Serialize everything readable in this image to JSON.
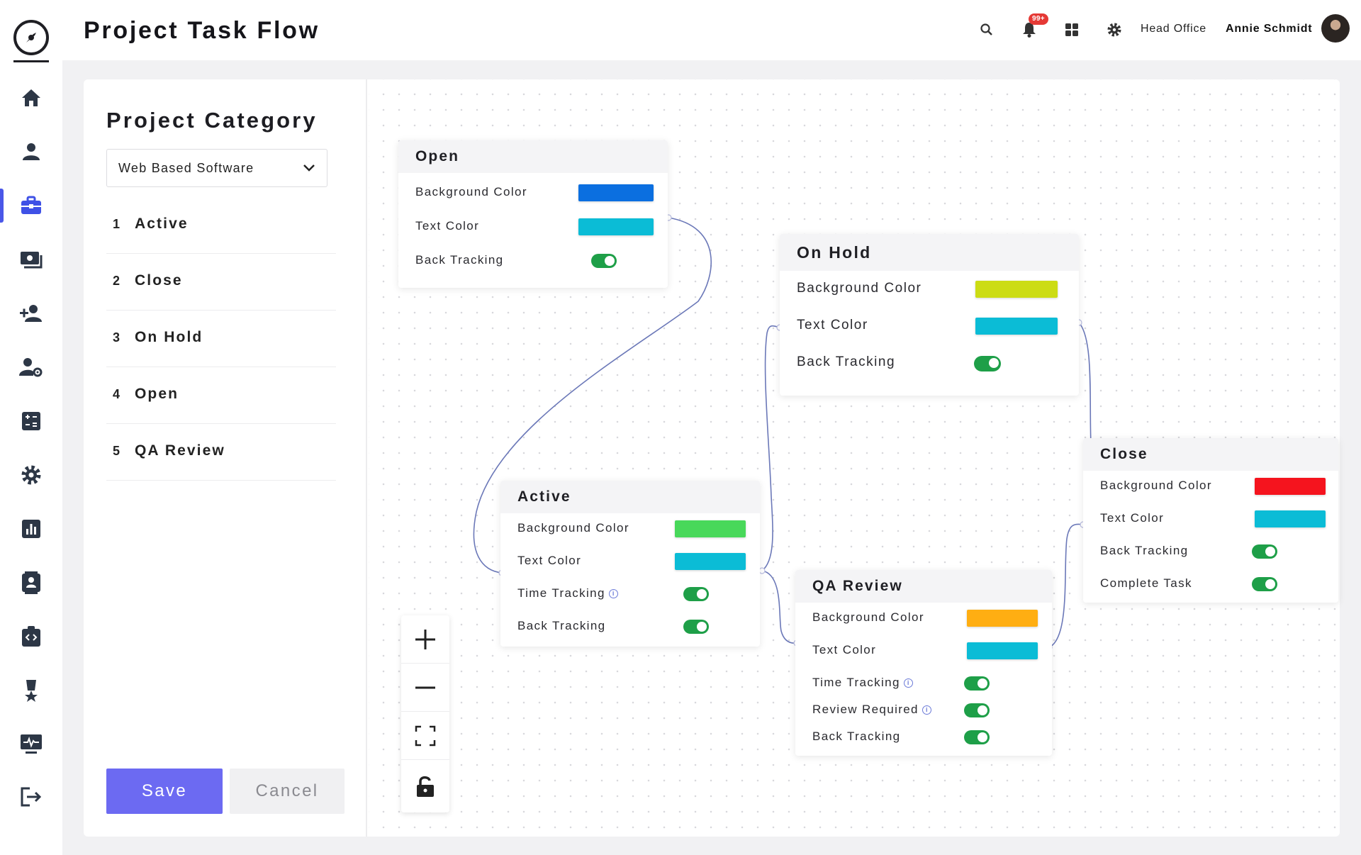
{
  "header": {
    "title": "Project Task Flow",
    "notification_badge": "99+",
    "office": "Head Office",
    "user_name": "Annie Schmidt"
  },
  "sidebar": {
    "items": [
      {
        "icon": "home-icon"
      },
      {
        "icon": "user-icon"
      },
      {
        "icon": "briefcase-icon",
        "active": true
      },
      {
        "icon": "money-icon"
      },
      {
        "icon": "add-user-icon"
      },
      {
        "icon": "user-settings-icon"
      },
      {
        "icon": "calculator-icon"
      },
      {
        "icon": "gear-icon"
      },
      {
        "icon": "bar-chart-icon"
      },
      {
        "icon": "contact-card-icon"
      },
      {
        "icon": "code-clipboard-icon"
      },
      {
        "icon": "award-icon"
      },
      {
        "icon": "monitor-pulse-icon"
      },
      {
        "icon": "logout-icon"
      }
    ],
    "accent_color": "#4a57e8"
  },
  "panel": {
    "title": "Project Category",
    "select_value": "Web Based Software",
    "categories": [
      {
        "num": "1",
        "label": "Active"
      },
      {
        "num": "2",
        "label": "Close"
      },
      {
        "num": "3",
        "label": "On Hold"
      },
      {
        "num": "4",
        "label": "Open"
      },
      {
        "num": "5",
        "label": "QA Review"
      }
    ],
    "save_label": "Save",
    "cancel_label": "Cancel"
  },
  "nodes": {
    "open": {
      "title": "Open",
      "bg_label": "Background Color",
      "bg_color": "#0b6fe0",
      "text_label": "Text Color",
      "text_color": "#0bbcd6",
      "back_label": "Back Tracking",
      "back_on": true
    },
    "on_hold": {
      "title": "On Hold",
      "bg_label": "Background Color",
      "bg_color": "#ccdc14",
      "text_label": "Text Color",
      "text_color": "#0bbcd6",
      "back_label": "Back Tracking",
      "back_on": true
    },
    "active": {
      "title": "Active",
      "bg_label": "Background Color",
      "bg_color": "#48d85a",
      "text_label": "Text Color",
      "text_color": "#0bbcd6",
      "time_label": "Time Tracking",
      "time_on": true,
      "back_label": "Back Tracking",
      "back_on": true
    },
    "qa_review": {
      "title": "QA Review",
      "bg_label": "Background Color",
      "bg_color": "#ffae12",
      "text_label": "Text Color",
      "text_color": "#0bbcd6",
      "time_label": "Time Tracking",
      "time_on": true,
      "review_label": "Review Required",
      "review_on": true,
      "back_label": "Back Tracking",
      "back_on": true
    },
    "close": {
      "title": "Close",
      "bg_label": "Background Color",
      "bg_color": "#f5141e",
      "text_label": "Text Color",
      "text_color": "#0bbcd6",
      "back_label": "Back Tracking",
      "back_on": true,
      "complete_label": "Complete Task",
      "complete_on": true
    }
  },
  "zoom_controls": [
    "zoom-in-icon",
    "zoom-out-icon",
    "fit-view-icon",
    "lock-icon"
  ],
  "toggle_color": "#1e9f48",
  "connector_color": "#6b78b8"
}
